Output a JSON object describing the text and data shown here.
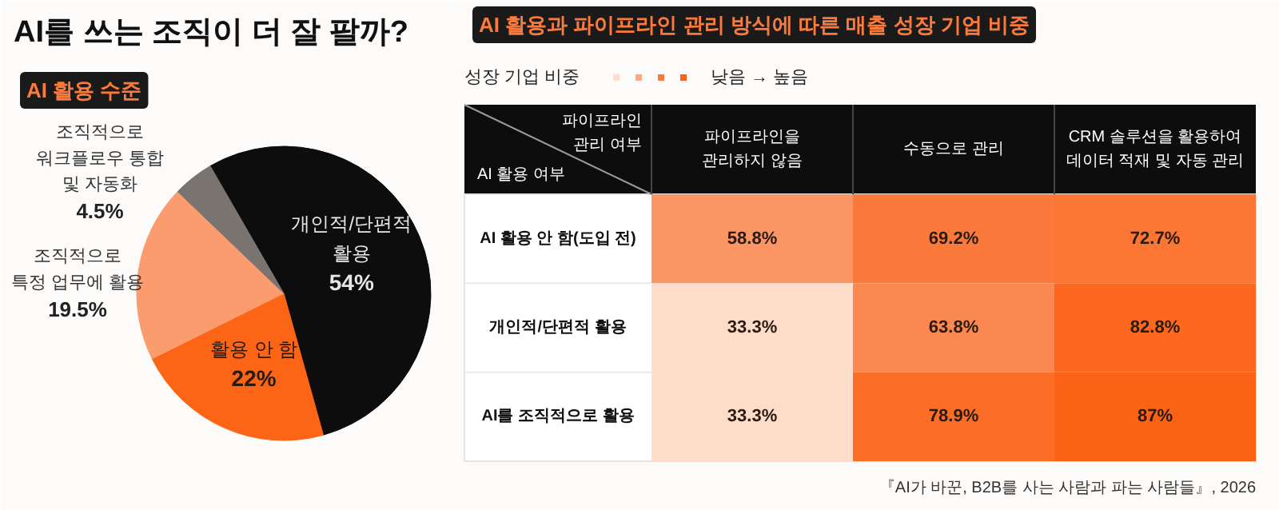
{
  "chart_data": [
    {
      "type": "pie",
      "title": "AI를 쓰는 조직이 더 잘 팔까?",
      "subtitle": "AI 활용 수준",
      "categories": [
        "개인적/단편적\n활용",
        "활용 안 함",
        "조직적으로\n특정 업무에 활용",
        "조직적으로\n워크플로우 통합\n및 자동화"
      ],
      "values": [
        54,
        22,
        19.5,
        4.5
      ],
      "value_labels": [
        "54%",
        "22%",
        "19.5%",
        "4.5%"
      ],
      "colors": [
        "#0d0d0d",
        "#fb6515",
        "#fb9c6e",
        "#7a7471"
      ]
    },
    {
      "type": "heatmap",
      "title": "AI 활용과 파이프라인 관리 방식에 따른 매출 성장 기업 비중",
      "xlabel": "파이프라인\n관리 여부",
      "ylabel": "AI 활용 여부",
      "legend_title": "성장 기업 비중",
      "categories": [
        "파이프라인을\n관리하지 않음",
        "수동으로 관리",
        "CRM 솔루션을 활용하여\n데이터 적재 및 자동 관리"
      ],
      "y_categories": [
        "AI 활용 안 함(도입 전)",
        "개인적/단편적 활용",
        "AI를 조직적으로 활용"
      ],
      "cells": [
        [
          58.8,
          69.2,
          72.7
        ],
        [
          33.3,
          63.8,
          82.8
        ],
        [
          33.3,
          78.9,
          87
        ]
      ],
      "cell_labels": [
        [
          "58.8%",
          "69.2%",
          "72.7%"
        ],
        [
          "33.3%",
          "63.8%",
          "82.8%"
        ],
        [
          "33.3%",
          "78.9%",
          "87%"
        ]
      ],
      "colors": [
        "#fddcca",
        "#fca983",
        "#fb7a3b",
        "#fc6215"
      ],
      "annotations": [
        "낮음 → 높음",
        "『AI가 바꾼, B2B를 사는 사람과 파는 사람들』, 2026"
      ]
    }
  ]
}
